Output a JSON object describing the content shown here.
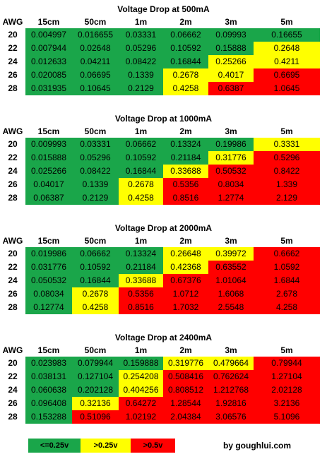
{
  "columns": [
    "15cm",
    "50cm",
    "1m",
    "2m",
    "3m",
    "5m"
  ],
  "awg_label": "AWG",
  "colors": {
    "green": "#1aa64a",
    "yellow": "#ffff00",
    "red": "#ff0000"
  },
  "tables": [
    {
      "title": "Voltage Drop at 500mA",
      "rows": [
        {
          "awg": "20",
          "values": [
            "0.004997",
            "0.016655",
            "0.03331",
            "0.06662",
            "0.09993",
            "0.16655"
          ],
          "colors": [
            "g",
            "g",
            "g",
            "g",
            "g",
            "g"
          ]
        },
        {
          "awg": "22",
          "values": [
            "0.007944",
            "0.02648",
            "0.05296",
            "0.10592",
            "0.15888",
            "0.2648"
          ],
          "colors": [
            "g",
            "g",
            "g",
            "g",
            "g",
            "y"
          ]
        },
        {
          "awg": "24",
          "values": [
            "0.012633",
            "0.04211",
            "0.08422",
            "0.16844",
            "0.25266",
            "0.4211"
          ],
          "colors": [
            "g",
            "g",
            "g",
            "g",
            "y",
            "y"
          ]
        },
        {
          "awg": "26",
          "values": [
            "0.020085",
            "0.06695",
            "0.1339",
            "0.2678",
            "0.4017",
            "0.6695"
          ],
          "colors": [
            "g",
            "g",
            "g",
            "y",
            "y",
            "r"
          ]
        },
        {
          "awg": "28",
          "values": [
            "0.031935",
            "0.10645",
            "0.2129",
            "0.4258",
            "0.6387",
            "1.0645"
          ],
          "colors": [
            "g",
            "g",
            "g",
            "y",
            "r",
            "r"
          ]
        }
      ]
    },
    {
      "title": "Voltage Drop at 1000mA",
      "rows": [
        {
          "awg": "20",
          "values": [
            "0.009993",
            "0.03331",
            "0.06662",
            "0.13324",
            "0.19986",
            "0.3331"
          ],
          "colors": [
            "g",
            "g",
            "g",
            "g",
            "g",
            "y"
          ]
        },
        {
          "awg": "22",
          "values": [
            "0.015888",
            "0.05296",
            "0.10592",
            "0.21184",
            "0.31776",
            "0.5296"
          ],
          "colors": [
            "g",
            "g",
            "g",
            "g",
            "y",
            "r"
          ]
        },
        {
          "awg": "24",
          "values": [
            "0.025266",
            "0.08422",
            "0.16844",
            "0.33688",
            "0.50532",
            "0.8422"
          ],
          "colors": [
            "g",
            "g",
            "g",
            "y",
            "r",
            "r"
          ]
        },
        {
          "awg": "26",
          "values": [
            "0.04017",
            "0.1339",
            "0.2678",
            "0.5356",
            "0.8034",
            "1.339"
          ],
          "colors": [
            "g",
            "g",
            "y",
            "r",
            "r",
            "r"
          ]
        },
        {
          "awg": "28",
          "values": [
            "0.06387",
            "0.2129",
            "0.4258",
            "0.8516",
            "1.2774",
            "2.129"
          ],
          "colors": [
            "g",
            "g",
            "y",
            "r",
            "r",
            "r"
          ]
        }
      ]
    },
    {
      "title": "Voltage Drop at 2000mA",
      "rows": [
        {
          "awg": "20",
          "values": [
            "0.019986",
            "0.06662",
            "0.13324",
            "0.26648",
            "0.39972",
            "0.6662"
          ],
          "colors": [
            "g",
            "g",
            "g",
            "y",
            "y",
            "r"
          ]
        },
        {
          "awg": "22",
          "values": [
            "0.031776",
            "0.10592",
            "0.21184",
            "0.42368",
            "0.63552",
            "1.0592"
          ],
          "colors": [
            "g",
            "g",
            "g",
            "y",
            "r",
            "r"
          ]
        },
        {
          "awg": "24",
          "values": [
            "0.050532",
            "0.16844",
            "0.33688",
            "0.67376",
            "1.01064",
            "1.6844"
          ],
          "colors": [
            "g",
            "g",
            "y",
            "r",
            "r",
            "r"
          ]
        },
        {
          "awg": "26",
          "values": [
            "0.08034",
            "0.2678",
            "0.5356",
            "1.0712",
            "1.6068",
            "2.678"
          ],
          "colors": [
            "g",
            "y",
            "r",
            "r",
            "r",
            "r"
          ]
        },
        {
          "awg": "28",
          "values": [
            "0.12774",
            "0.4258",
            "0.8516",
            "1.7032",
            "2.5548",
            "4.258"
          ],
          "colors": [
            "g",
            "y",
            "r",
            "r",
            "r",
            "r"
          ]
        }
      ]
    },
    {
      "title": "Voltage Drop at 2400mA",
      "rows": [
        {
          "awg": "20",
          "values": [
            "0.023983",
            "0.079944",
            "0.159888",
            "0.319776",
            "0.479664",
            "0.79944"
          ],
          "colors": [
            "g",
            "g",
            "g",
            "y",
            "y",
            "r"
          ]
        },
        {
          "awg": "22",
          "values": [
            "0.038131",
            "0.127104",
            "0.254208",
            "0.508416",
            "0.762624",
            "1.27104"
          ],
          "colors": [
            "g",
            "g",
            "y",
            "r",
            "r",
            "r"
          ]
        },
        {
          "awg": "24",
          "values": [
            "0.060638",
            "0.202128",
            "0.404256",
            "0.808512",
            "1.212768",
            "2.02128"
          ],
          "colors": [
            "g",
            "g",
            "y",
            "r",
            "r",
            "r"
          ]
        },
        {
          "awg": "26",
          "values": [
            "0.096408",
            "0.32136",
            "0.64272",
            "1.28544",
            "1.92816",
            "3.2136"
          ],
          "colors": [
            "g",
            "y",
            "r",
            "r",
            "r",
            "r"
          ]
        },
        {
          "awg": "28",
          "values": [
            "0.153288",
            "0.51096",
            "1.02192",
            "2.04384",
            "3.06576",
            "5.1096"
          ],
          "colors": [
            "g",
            "r",
            "r",
            "r",
            "r",
            "r"
          ]
        }
      ]
    }
  ],
  "legend": [
    {
      "label": "<=0.25v",
      "color": "g"
    },
    {
      "label": ">0.25v",
      "color": "y"
    },
    {
      "label": ">0.5v",
      "color": "r"
    }
  ],
  "credit": "by goughlui.com"
}
